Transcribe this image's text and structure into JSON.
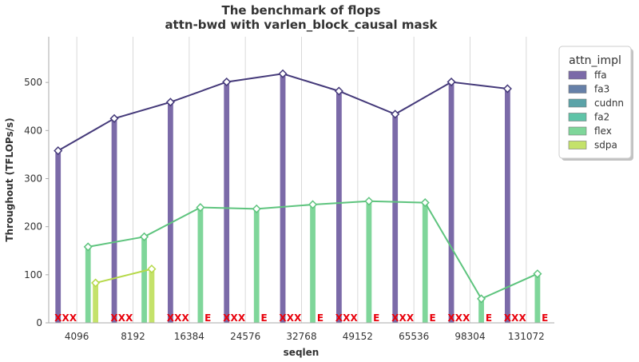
{
  "chart_data": {
    "type": "bar",
    "title": "The benchmark of flops",
    "subtitle": "attn-bwd with varlen_block_causal mask",
    "xlabel": "seqlen",
    "ylabel": "Throughout (TFLOPs/s)",
    "categories": [
      "4096",
      "8192",
      "16384",
      "24576",
      "32768",
      "49152",
      "65536",
      "98304",
      "131072"
    ],
    "ylim": [
      0,
      595
    ],
    "yticks": [
      0,
      100,
      200,
      300,
      400,
      500
    ],
    "grid": "vertical",
    "legend": {
      "title": "attn_impl",
      "placement": "right"
    },
    "series": [
      {
        "name": "ffa",
        "color": "#7b6aa8",
        "values": [
          358,
          425,
          459,
          501,
          518,
          482,
          434,
          501,
          487
        ],
        "line": true,
        "line_color": "#453a7a"
      },
      {
        "name": "fa3",
        "color": "#6680a8",
        "values": [
          null,
          null,
          null,
          null,
          null,
          null,
          null,
          null,
          null
        ]
      },
      {
        "name": "cudnn",
        "color": "#5ba3a8",
        "values": [
          null,
          null,
          null,
          null,
          null,
          null,
          null,
          null,
          null
        ]
      },
      {
        "name": "fa2",
        "color": "#5fc4a8",
        "values": [
          null,
          null,
          null,
          null,
          null,
          null,
          null,
          null,
          null
        ]
      },
      {
        "name": "flex",
        "color": "#7fd69a",
        "values": [
          158,
          179,
          240,
          237,
          246,
          253,
          250,
          50,
          102
        ],
        "line": true,
        "line_color": "#5ec47e"
      },
      {
        "name": "sdpa",
        "color": "#c4e26a",
        "values": [
          83,
          112,
          null,
          null,
          null,
          null,
          null,
          null,
          null
        ],
        "line": true,
        "line_color": "#b6d94a"
      }
    ],
    "error_marks": [
      [
        "X",
        "X",
        "X",
        null,
        null,
        null
      ],
      [
        "X",
        "X",
        "X",
        null,
        null,
        null
      ],
      [
        "X",
        "X",
        "X",
        null,
        null,
        "E"
      ],
      [
        "X",
        "X",
        "X",
        null,
        null,
        "E"
      ],
      [
        "X",
        "X",
        "X",
        null,
        null,
        "E"
      ],
      [
        "X",
        "X",
        "X",
        null,
        null,
        "E"
      ],
      [
        "X",
        "X",
        "X",
        null,
        null,
        "E"
      ],
      [
        "X",
        "X",
        "X",
        null,
        null,
        "E"
      ],
      [
        "X",
        "X",
        "X",
        null,
        null,
        "E"
      ]
    ],
    "error_color": "#e8000b"
  }
}
